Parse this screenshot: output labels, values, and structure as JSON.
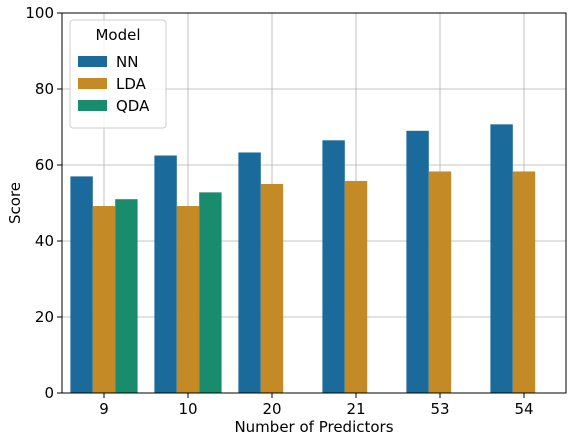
{
  "chart_data": {
    "type": "bar",
    "categories": [
      "9",
      "10",
      "20",
      "21",
      "53",
      "54"
    ],
    "series": [
      {
        "name": "NN",
        "color": "#1a6b9b",
        "values": [
          57,
          62.5,
          63.3,
          66.5,
          69,
          70.7
        ]
      },
      {
        "name": "LDA",
        "color": "#c38a25",
        "values": [
          49.2,
          49.2,
          55,
          55.8,
          58.3,
          58.3
        ]
      },
      {
        "name": "QDA",
        "color": "#1a8c6e",
        "values": [
          51,
          52.8,
          null,
          null,
          null,
          null
        ]
      }
    ],
    "xlabel": "Number of Predictors",
    "ylabel": "Score",
    "ylim": [
      0,
      100
    ],
    "yticks": [
      "0",
      "20",
      "40",
      "60",
      "80",
      "100"
    ],
    "grid": true,
    "legend": {
      "title": "Model",
      "placement": "top-left"
    }
  }
}
